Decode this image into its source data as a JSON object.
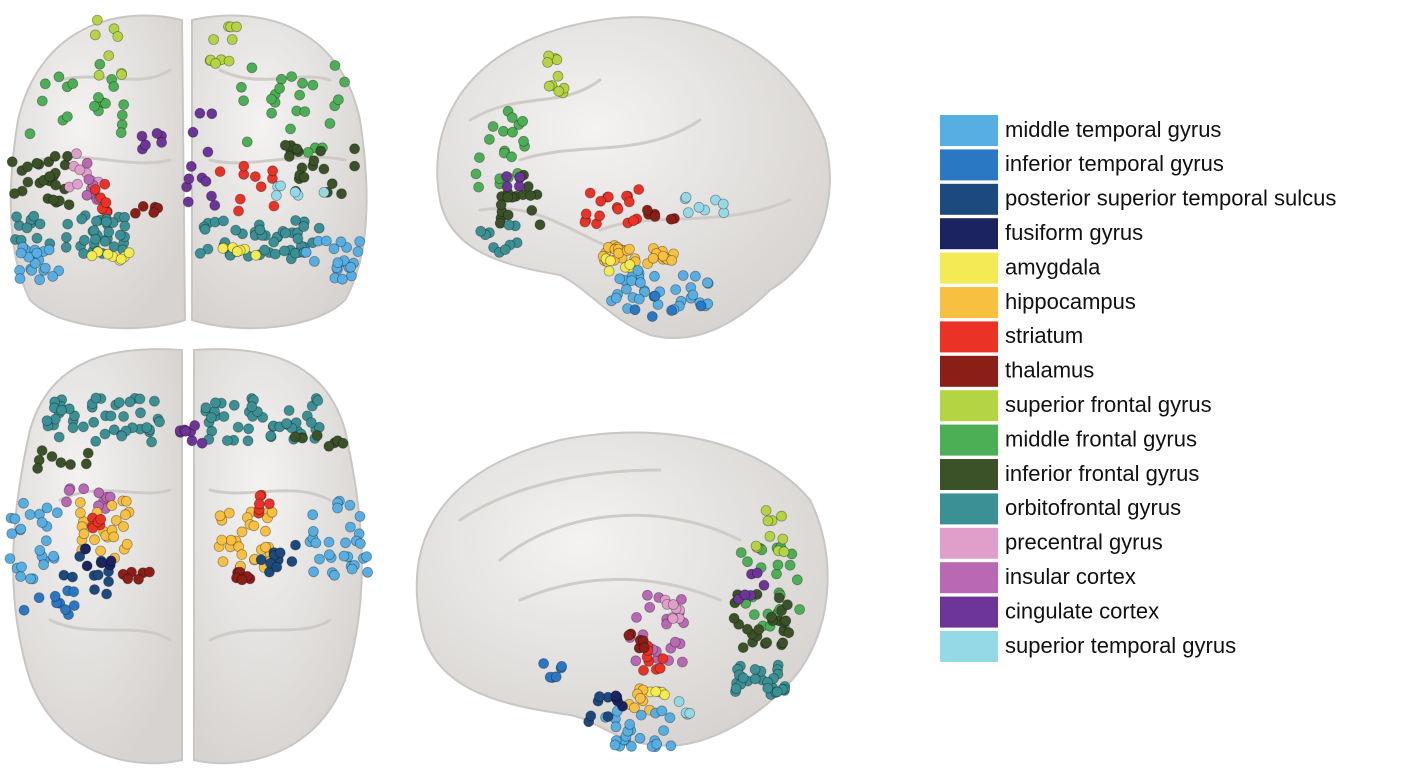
{
  "legend": [
    {
      "name": "middle temporal gyrus",
      "color": "#56aee2"
    },
    {
      "name": "inferior temporal gyrus",
      "color": "#2a78c4"
    },
    {
      "name": "posterior superior temporal sulcus",
      "color": "#1c4a7e"
    },
    {
      "name": "fusiform gyrus",
      "color": "#1b2461"
    },
    {
      "name": "amygdala",
      "color": "#f3ea54"
    },
    {
      "name": "hippocampus",
      "color": "#f7c040"
    },
    {
      "name": "striatum",
      "color": "#ea3326"
    },
    {
      "name": "thalamus",
      "color": "#8b1f18"
    },
    {
      "name": "superior frontal gyrus",
      "color": "#b5d443"
    },
    {
      "name": "middle frontal gyrus",
      "color": "#4daf55"
    },
    {
      "name": "inferior frontal gyrus",
      "color": "#3b5228"
    },
    {
      "name": "orbitofrontal gyrus",
      "color": "#3a9094"
    },
    {
      "name": "precentral gyrus",
      "color": "#e09fcb"
    },
    {
      "name": "insular cortex",
      "color": "#b968b4"
    },
    {
      "name": "cingulate cortex",
      "color": "#6d3597"
    },
    {
      "name": "superior temporal gyrus",
      "color": "#95d9e6"
    }
  ]
}
